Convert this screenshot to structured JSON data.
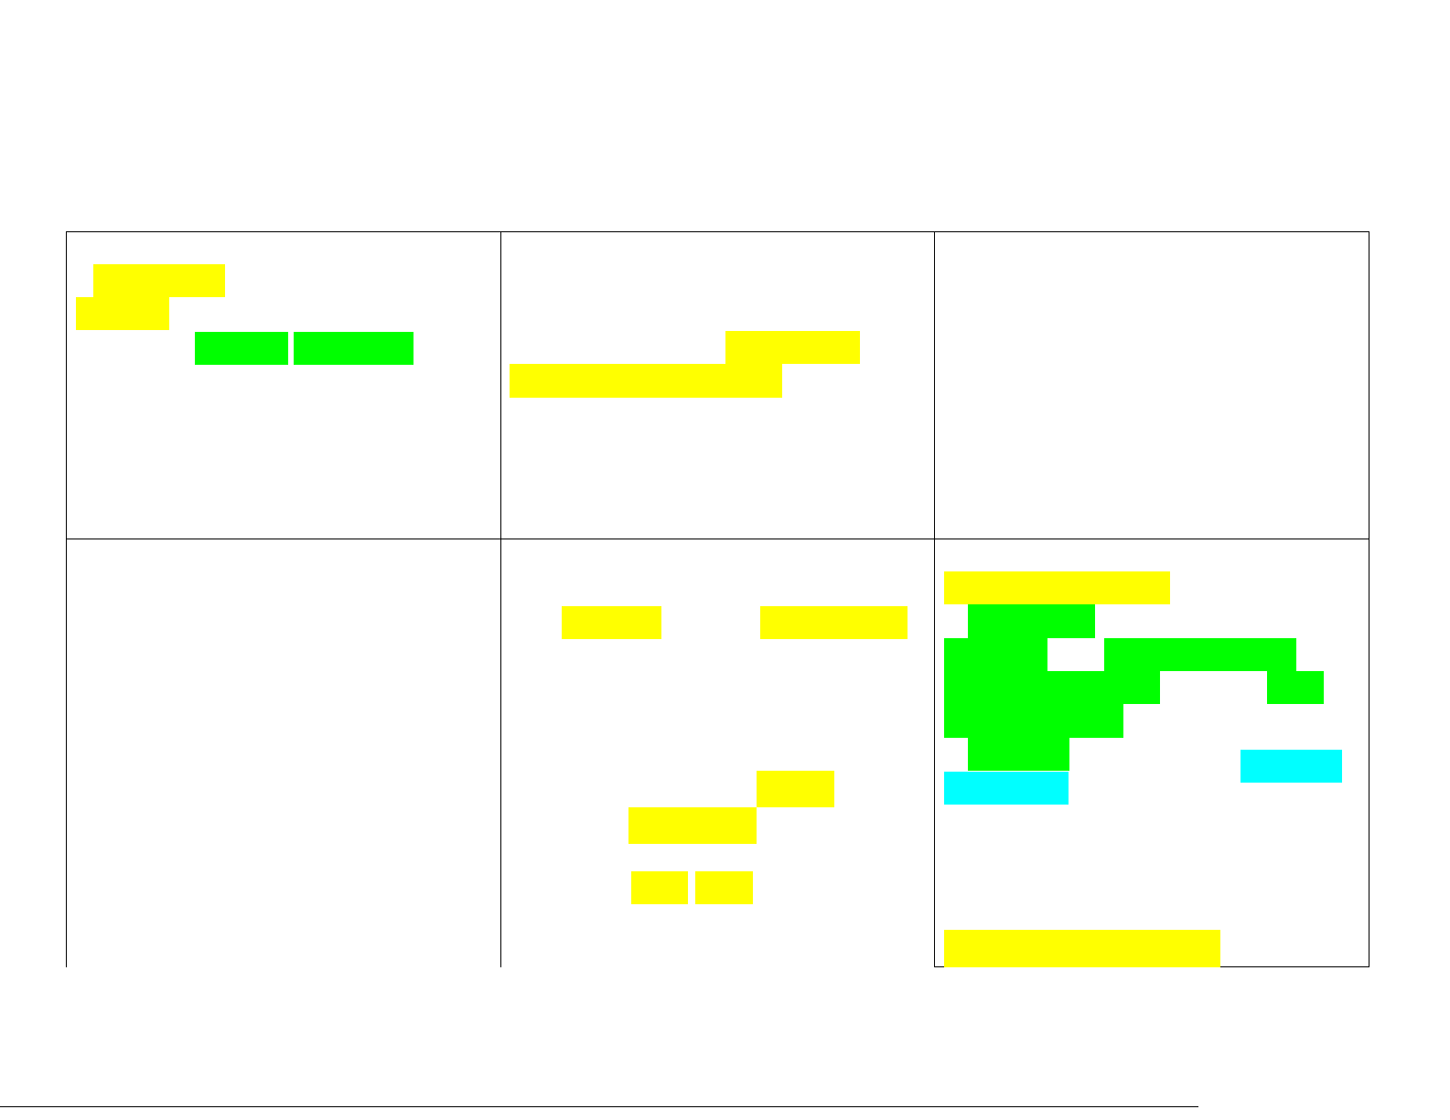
{
  "document": {
    "highlight_colors": {
      "yellow": "#ffff00",
      "green": "#00ff00",
      "cyan": "#00ffff"
    },
    "table": {
      "columns": 3,
      "rows": 2,
      "cells": [
        {
          "highlights": [
            "yellow",
            "yellow",
            "green",
            "green"
          ]
        },
        {
          "highlights": [
            "yellow",
            "yellow"
          ]
        },
        {
          "highlights": []
        },
        {
          "highlights": []
        },
        {
          "highlights": [
            "yellow",
            "yellow",
            "yellow",
            "yellow",
            "yellow",
            "yellow"
          ]
        },
        {
          "highlights": [
            "yellow",
            "green",
            "green",
            "green",
            "green",
            "green",
            "green",
            "green",
            "cyan",
            "cyan",
            "yellow"
          ]
        }
      ]
    }
  }
}
